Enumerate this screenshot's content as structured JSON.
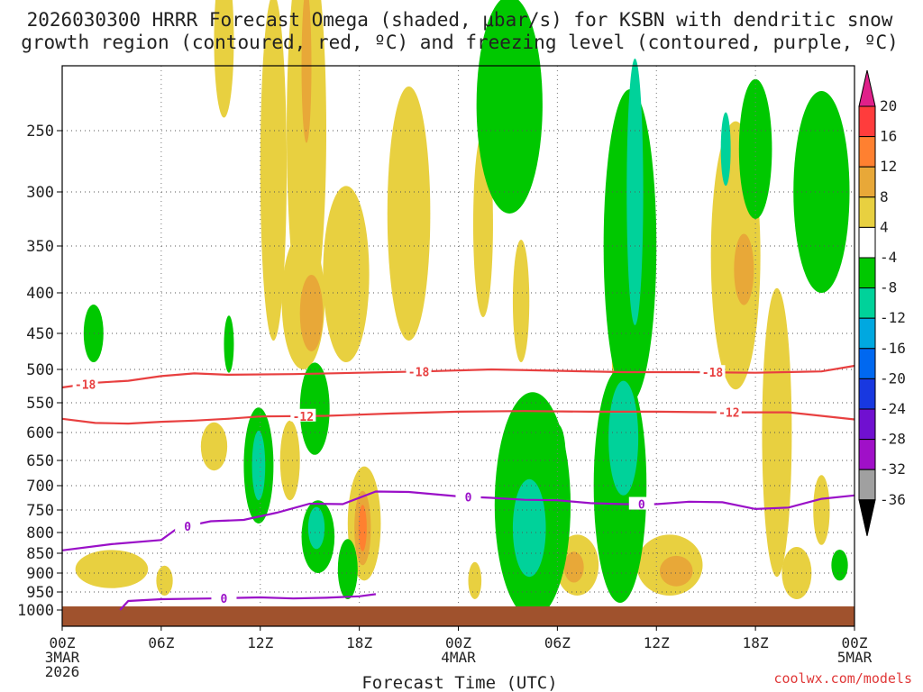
{
  "chart_data": {
    "type": "heatmap",
    "title_line1": "2026030300 HRRR Forecast Omega (shaded, μbar/s) for KSBN with dendritic snow",
    "title_line2": "growth region (contoured, red, ºC) and freezing level (contoured, purple, ºC)",
    "xlabel": "Forecast Time (UTC)",
    "credit": "coolwx.com/models",
    "x_range_hours": [
      0,
      48
    ],
    "y_range_hpa": [
      1040,
      200
    ],
    "x_ticks": [
      {
        "hour": 0,
        "label": "00Z",
        "sub1": "3MAR",
        "sub2": "2026"
      },
      {
        "hour": 6,
        "label": "06Z",
        "sub1": "",
        "sub2": ""
      },
      {
        "hour": 12,
        "label": "12Z",
        "sub1": "",
        "sub2": ""
      },
      {
        "hour": 18,
        "label": "18Z",
        "sub1": "",
        "sub2": ""
      },
      {
        "hour": 24,
        "label": "00Z",
        "sub1": "4MAR",
        "sub2": ""
      },
      {
        "hour": 30,
        "label": "06Z",
        "sub1": "",
        "sub2": ""
      },
      {
        "hour": 36,
        "label": "12Z",
        "sub1": "",
        "sub2": ""
      },
      {
        "hour": 42,
        "label": "18Z",
        "sub1": "",
        "sub2": ""
      },
      {
        "hour": 48,
        "label": "00Z",
        "sub1": "5MAR",
        "sub2": ""
      }
    ],
    "y_ticks": [
      "250",
      "300",
      "350",
      "400",
      "450",
      "500",
      "550",
      "600",
      "650",
      "700",
      "750",
      "800",
      "850",
      "900",
      "950",
      "1000"
    ],
    "colorbar_labels": [
      "20",
      "16",
      "12",
      "8",
      "4",
      "-4",
      "-8",
      "-12",
      "-16",
      "-20",
      "-24",
      "-28",
      "-32",
      "-36"
    ],
    "colorbar_colors": [
      "#ff3c3c",
      "#ff8030",
      "#e8a838",
      "#e8d040",
      "#ffffff",
      "#00c800",
      "#00d29a",
      "#00a8e0",
      "#0068f0",
      "#1838e0",
      "#7010d0",
      "#a010c8",
      "#a0a0a0",
      "#000000"
    ],
    "colorbar_top_color": "#e0208a",
    "colorbar_bottom_color": "#000000",
    "dgz_series": [
      {
        "name": "-18",
        "color": "#e84040",
        "points": [
          [
            0,
            527
          ],
          [
            2,
            520
          ],
          [
            4,
            517
          ],
          [
            6,
            510
          ],
          [
            8,
            506
          ],
          [
            10,
            508
          ],
          [
            14,
            507
          ],
          [
            18,
            505
          ],
          [
            22,
            503
          ],
          [
            26,
            500
          ],
          [
            30,
            502
          ],
          [
            34,
            504
          ],
          [
            38,
            504
          ],
          [
            42,
            505
          ],
          [
            46,
            503
          ],
          [
            48,
            495
          ]
        ],
        "labels": [
          {
            "hour": 1.4,
            "text": "-18"
          },
          {
            "hour": 21.6,
            "text": "-18"
          },
          {
            "hour": 39.4,
            "text": "-18"
          }
        ]
      },
      {
        "name": "-12",
        "color": "#e84040",
        "points": [
          [
            0,
            577
          ],
          [
            2,
            584
          ],
          [
            4,
            585
          ],
          [
            6,
            582
          ],
          [
            8,
            580
          ],
          [
            10,
            577
          ],
          [
            12,
            573
          ],
          [
            16,
            572
          ],
          [
            20,
            568
          ],
          [
            24,
            565
          ],
          [
            28,
            564
          ],
          [
            32,
            565
          ],
          [
            36,
            565
          ],
          [
            40,
            566
          ],
          [
            44,
            566
          ],
          [
            48,
            578
          ]
        ],
        "labels": [
          {
            "hour": 14.6,
            "text": "-12"
          },
          {
            "hour": 40.4,
            "text": "-12"
          }
        ]
      }
    ],
    "freezing_series": [
      {
        "name": "0",
        "color": "#9a10c8",
        "points": [
          [
            0,
            843
          ],
          [
            3,
            828
          ],
          [
            6,
            818
          ],
          [
            7,
            790
          ],
          [
            9,
            775
          ],
          [
            11,
            772
          ],
          [
            13,
            756
          ],
          [
            15,
            737
          ],
          [
            17,
            738
          ],
          [
            19,
            712
          ],
          [
            21,
            713
          ],
          [
            24,
            722
          ],
          [
            26,
            725
          ],
          [
            28,
            729
          ],
          [
            30,
            730
          ],
          [
            32,
            736
          ],
          [
            34,
            738
          ],
          [
            36,
            738
          ],
          [
            38,
            733
          ],
          [
            40,
            734
          ],
          [
            42,
            748
          ],
          [
            44,
            745
          ],
          [
            46,
            727
          ],
          [
            48,
            720
          ]
        ],
        "labels": [
          {
            "hour": 7.6,
            "text": "0"
          },
          {
            "hour": 24.6,
            "text": "0"
          },
          {
            "hour": 35.1,
            "text": "0"
          }
        ]
      },
      {
        "name": "0",
        "color": "#9a10c8",
        "points": [
          [
            3.5,
            1000
          ],
          [
            4,
            975
          ],
          [
            6,
            970
          ],
          [
            9,
            968
          ],
          [
            12,
            965
          ],
          [
            14,
            968
          ],
          [
            16,
            966
          ],
          [
            18,
            962
          ],
          [
            19,
            956
          ]
        ],
        "labels": [
          {
            "hour": 9.8,
            "text": "0"
          }
        ]
      }
    ],
    "omega_regions": [
      {
        "category": "4",
        "color": "#e8d040",
        "hour": 9.8,
        "hpa": 180,
        "dh": 0.6,
        "dp": 60
      },
      {
        "category": "4",
        "color": "#e8d040",
        "hour": 12.8,
        "hpa": 280,
        "dh": 0.8,
        "dp": 180
      },
      {
        "category": "4",
        "color": "#e8d040",
        "hour": 14.8,
        "hpa": 250,
        "dh": 1.2,
        "dp": 190
      },
      {
        "category": "4",
        "color": "#e8d040",
        "hour": 14.6,
        "hpa": 410,
        "dh": 1.3,
        "dp": 90
      },
      {
        "category": "4",
        "color": "#e8d040",
        "hour": 17.2,
        "hpa": 380,
        "dh": 1.4,
        "dp": 110
      },
      {
        "category": "4",
        "color": "#e8d040",
        "hour": 21.0,
        "hpa": 320,
        "dh": 1.3,
        "dp": 140
      },
      {
        "category": "4",
        "color": "#e8d040",
        "hour": 25.5,
        "hpa": 330,
        "dh": 0.6,
        "dp": 100
      },
      {
        "category": "4",
        "color": "#e8d040",
        "hour": 27.8,
        "hpa": 410,
        "dh": 0.5,
        "dp": 80
      },
      {
        "category": "4",
        "color": "#e8d040",
        "hour": 40.8,
        "hpa": 360,
        "dh": 1.5,
        "dp": 170
      },
      {
        "category": "4",
        "color": "#e8d040",
        "hour": 43.3,
        "hpa": 600,
        "dh": 0.9,
        "dp": 310
      },
      {
        "category": "4",
        "color": "#e8d040",
        "hour": 9.2,
        "hpa": 625,
        "dh": 0.8,
        "dp": 45
      },
      {
        "category": "4",
        "color": "#e8d040",
        "hour": 13.8,
        "hpa": 650,
        "dh": 0.6,
        "dp": 80
      },
      {
        "category": "4",
        "color": "#e8d040",
        "hour": 18.3,
        "hpa": 780,
        "dh": 1.0,
        "dp": 140
      },
      {
        "category": "4",
        "color": "#e8d040",
        "hour": 3.0,
        "hpa": 890,
        "dh": 2.2,
        "dp": 50
      },
      {
        "category": "4",
        "color": "#e8d040",
        "hour": 6.2,
        "hpa": 920,
        "dh": 0.5,
        "dp": 40
      },
      {
        "category": "4",
        "color": "#e8d040",
        "hour": 31.2,
        "hpa": 880,
        "dh": 1.3,
        "dp": 80
      },
      {
        "category": "4",
        "color": "#e8d040",
        "hour": 36.8,
        "hpa": 880,
        "dh": 2.0,
        "dp": 80
      },
      {
        "category": "4",
        "color": "#e8d040",
        "hour": 44.5,
        "hpa": 900,
        "dh": 0.9,
        "dp": 70
      },
      {
        "category": "4",
        "color": "#e8d040",
        "hour": 46.0,
        "hpa": 750,
        "dh": 0.5,
        "dp": 80
      },
      {
        "category": "4",
        "color": "#e8d040",
        "hour": 33.8,
        "hpa": 480,
        "dh": 0.5,
        "dp": 120
      },
      {
        "category": "4",
        "color": "#e8d040",
        "hour": 25.0,
        "hpa": 920,
        "dh": 0.4,
        "dp": 50
      },
      {
        "category": "8",
        "color": "#e8a838",
        "hour": 15.1,
        "hpa": 425,
        "dh": 0.7,
        "dp": 50
      },
      {
        "category": "8",
        "color": "#e8a838",
        "hour": 14.8,
        "hpa": 200,
        "dh": 0.3,
        "dp": 60
      },
      {
        "category": "8",
        "color": "#e8a838",
        "hour": 41.3,
        "hpa": 375,
        "dh": 0.6,
        "dp": 40
      },
      {
        "category": "8",
        "color": "#e8a838",
        "hour": 31.0,
        "hpa": 885,
        "dh": 0.6,
        "dp": 40
      },
      {
        "category": "8",
        "color": "#e8a838",
        "hour": 37.2,
        "hpa": 895,
        "dh": 1.0,
        "dp": 40
      },
      {
        "category": "8",
        "color": "#e8a838",
        "hour": 18.2,
        "hpa": 790,
        "dh": 0.5,
        "dp": 90
      },
      {
        "category": "16",
        "color": "#ff8030",
        "hour": 18.2,
        "hpa": 790,
        "dh": 0.25,
        "dp": 55
      },
      {
        "category": "-4",
        "color": "#00c800",
        "hour": 1.9,
        "hpa": 450,
        "dh": 0.6,
        "dp": 40
      },
      {
        "category": "-4",
        "color": "#00c800",
        "hour": 10.1,
        "hpa": 465,
        "dh": 0.3,
        "dp": 40
      },
      {
        "category": "-4",
        "color": "#00c800",
        "hour": 11.9,
        "hpa": 660,
        "dh": 0.9,
        "dp": 120
      },
      {
        "category": "-4",
        "color": "#00c800",
        "hour": 15.3,
        "hpa": 560,
        "dh": 0.9,
        "dp": 80
      },
      {
        "category": "-4",
        "color": "#00c800",
        "hour": 15.5,
        "hpa": 810,
        "dh": 1.0,
        "dp": 90
      },
      {
        "category": "-4",
        "color": "#00c800",
        "hour": 17.3,
        "hpa": 890,
        "dh": 0.6,
        "dp": 80
      },
      {
        "category": "-4",
        "color": "#00c800",
        "hour": 27.1,
        "hpa": 230,
        "dh": 2.0,
        "dp": 90
      },
      {
        "category": "-4",
        "color": "#00c800",
        "hour": 28.5,
        "hpa": 740,
        "dh": 2.3,
        "dp": 280
      },
      {
        "category": "-4",
        "color": "#00c800",
        "hour": 34.4,
        "hpa": 350,
        "dh": 1.6,
        "dp": 200
      },
      {
        "category": "-4",
        "color": "#00c800",
        "hour": 33.8,
        "hpa": 700,
        "dh": 1.6,
        "dp": 280
      },
      {
        "category": "-4",
        "color": "#00c800",
        "hour": 42.0,
        "hpa": 265,
        "dh": 1.0,
        "dp": 60
      },
      {
        "category": "-4",
        "color": "#00c800",
        "hour": 46.0,
        "hpa": 300,
        "dh": 1.7,
        "dp": 100
      },
      {
        "category": "-4",
        "color": "#00c800",
        "hour": 30.0,
        "hpa": 640,
        "dh": 0.5,
        "dp": 60
      },
      {
        "category": "-4",
        "color": "#00c800",
        "hour": 47.1,
        "hpa": 880,
        "dh": 0.5,
        "dp": 40
      },
      {
        "category": "-8",
        "color": "#00d29a",
        "hour": 34.7,
        "hpa": 300,
        "dh": 0.5,
        "dp": 140
      },
      {
        "category": "-8",
        "color": "#00d29a",
        "hour": 34.0,
        "hpa": 610,
        "dh": 0.9,
        "dp": 110
      },
      {
        "category": "-8",
        "color": "#00d29a",
        "hour": 28.3,
        "hpa": 790,
        "dh": 1.0,
        "dp": 120
      },
      {
        "category": "-8",
        "color": "#00d29a",
        "hour": 11.9,
        "hpa": 660,
        "dh": 0.4,
        "dp": 70
      },
      {
        "category": "-8",
        "color": "#00d29a",
        "hour": 15.4,
        "hpa": 790,
        "dh": 0.5,
        "dp": 50
      },
      {
        "category": "-8",
        "color": "#00d29a",
        "hour": 40.2,
        "hpa": 265,
        "dh": 0.3,
        "dp": 30
      }
    ]
  }
}
